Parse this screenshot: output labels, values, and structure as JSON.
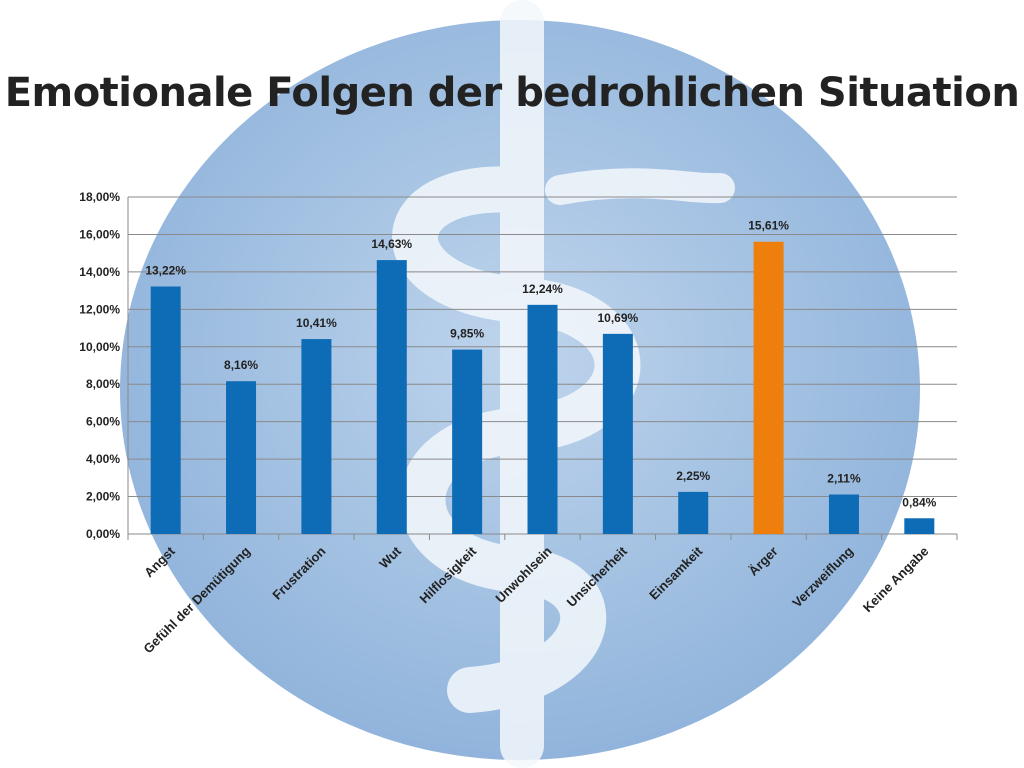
{
  "slide": {
    "title": "Emotionale Folgen der bedrohlichen Situation"
  },
  "colors": {
    "bar": "#0e6bb5",
    "highlight": "#ef7f0d",
    "grid": "#8a8a8a",
    "background_disc": "#6d9bd0",
    "background_symbol": "#f4f8fc"
  },
  "background": {
    "symbol": "staff-of-asclepius-icon"
  },
  "chart_data": {
    "type": "bar",
    "categories": [
      "Angst",
      "Gefühl der Demütigung",
      "Frustration",
      "Wut",
      "Hilflosigkeit",
      "Unwohlsein",
      "Unsicherheit",
      "Einsamkeit",
      "Ärger",
      "Verzweiflung",
      "Keine Angabe"
    ],
    "values": [
      13.22,
      8.16,
      10.41,
      14.63,
      9.85,
      12.24,
      10.69,
      2.25,
      15.61,
      2.11,
      0.84
    ],
    "value_labels": [
      "13,22%",
      "8,16%",
      "10,41%",
      "14,63%",
      "9,85%",
      "12,24%",
      "10,69%",
      "2,25%",
      "15,61%",
      "2,11%",
      "0,84%"
    ],
    "highlight_index": 8,
    "ylim": [
      0,
      18
    ],
    "yticks": [
      0,
      2,
      4,
      6,
      8,
      10,
      12,
      14,
      16,
      18
    ],
    "ytick_labels": [
      "0,00%",
      "2,00%",
      "4,00%",
      "6,00%",
      "8,00%",
      "10,00%",
      "12,00%",
      "14,00%",
      "16,00%",
      "18,00%"
    ],
    "xlabel": "",
    "ylabel": "",
    "grid": true,
    "legend": "none"
  }
}
